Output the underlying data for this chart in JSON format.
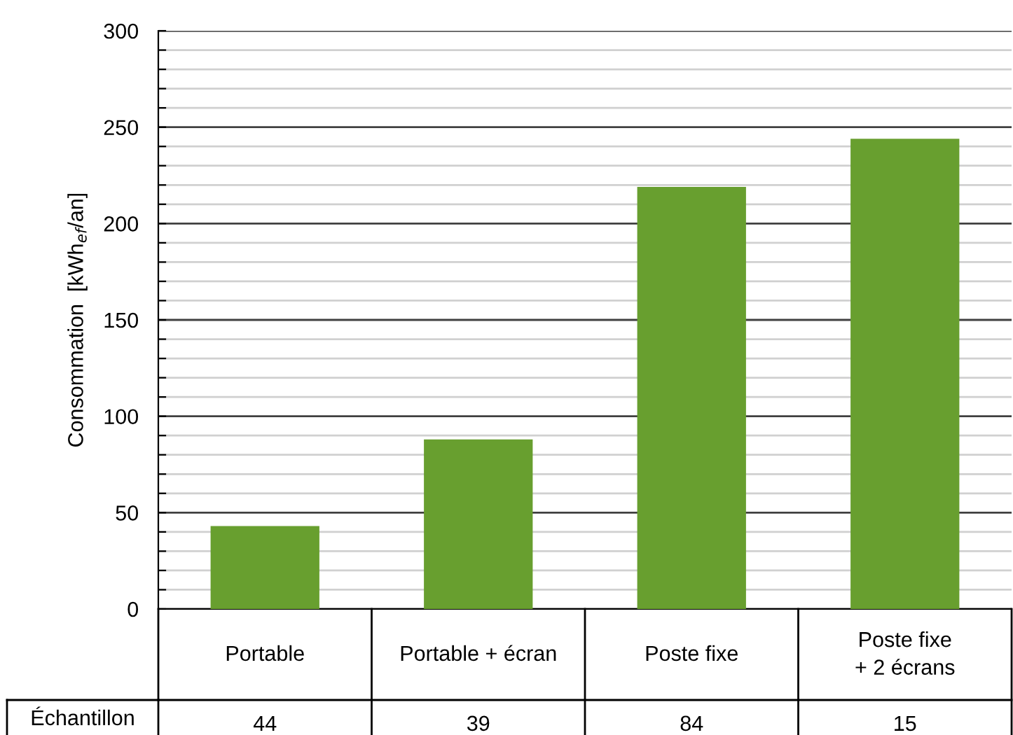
{
  "chart_data": {
    "type": "bar",
    "ylabel": "Consommation  [kWh$_{ef}$/an]",
    "categories": [
      "Portable",
      "Portable + écran",
      "Poste fixe",
      "Poste fixe\n+ 2 écrans"
    ],
    "values": [
      43,
      88,
      219,
      244
    ],
    "color": "#689f2f",
    "ylim": [
      0,
      300
    ],
    "yticks": [
      0,
      {
        "value": 10,
        "label": null
      },
      {
        "value": 20,
        "label": null
      },
      {
        "value": 30,
        "label": null
      },
      {
        "value": 40,
        "label": null
      },
      50,
      {
        "value": 60,
        "label": null
      },
      {
        "value": 70,
        "label": null
      },
      {
        "value": 80,
        "label": null
      },
      {
        "value": 90,
        "label": null
      },
      100,
      {
        "value": 110,
        "label": null
      },
      {
        "value": 120,
        "label": null
      },
      {
        "value": 130,
        "label": null
      },
      {
        "value": 140,
        "label": null
      },
      150,
      {
        "value": 160,
        "label": null
      },
      {
        "value": 170,
        "label": null
      },
      {
        "value": 180,
        "label": null
      },
      {
        "value": 190,
        "label": null
      },
      200,
      {
        "value": 210,
        "label": null
      },
      {
        "value": 220,
        "label": null
      },
      {
        "value": 230,
        "label": null
      },
      {
        "value": 240,
        "label": null
      },
      250,
      {
        "value": 260,
        "label": null
      },
      {
        "value": 270,
        "label": null
      },
      {
        "value": 280,
        "label": null
      },
      {
        "value": 290,
        "label": null
      },
      300
    ],
    "grid": "y",
    "annotations": [
      "Échantillon",
      "44",
      "39",
      "84",
      "15"
    ]
  }
}
